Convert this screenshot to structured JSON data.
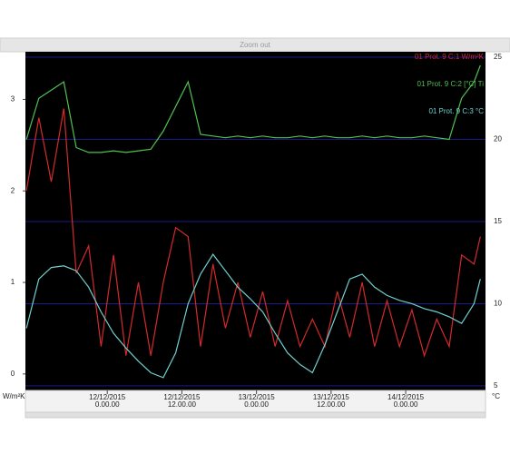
{
  "button": "Zoom out",
  "chart_data": {
    "type": "line",
    "ylabel": "W/m²K",
    "y2label": "°C",
    "x": [
      "2015-12-11T11:00",
      "2015-12-11T13:00",
      "2015-12-11T15:00",
      "2015-12-11T17:00",
      "2015-12-11T19:00",
      "2015-12-11T21:00",
      "2015-12-11T23:00",
      "2015-12-12T01:00",
      "2015-12-12T03:00",
      "2015-12-12T05:00",
      "2015-12-12T07:00",
      "2015-12-12T09:00",
      "2015-12-12T11:00",
      "2015-12-12T13:00",
      "2015-12-12T15:00",
      "2015-12-12T17:00",
      "2015-12-12T19:00",
      "2015-12-12T21:00",
      "2015-12-12T23:00",
      "2015-12-13T01:00",
      "2015-12-13T03:00",
      "2015-12-13T05:00",
      "2015-12-13T07:00",
      "2015-12-13T09:00",
      "2015-12-13T11:00",
      "2015-12-13T13:00",
      "2015-12-13T15:00",
      "2015-12-13T17:00",
      "2015-12-13T19:00",
      "2015-12-13T21:00",
      "2015-12-13T23:00",
      "2015-12-14T01:00",
      "2015-12-14T03:00",
      "2015-12-14T05:00",
      "2015-12-14T07:00",
      "2015-12-14T09:00",
      "2015-12-14T11:00",
      "2015-12-14T12:00"
    ],
    "xlim": [
      "2015-12-11T10:50",
      "2015-12-14T12:50"
    ],
    "xticks": [
      {
        "value": "2015-12-12T00:00",
        "label": [
          "12/12/2015",
          "0.00.00"
        ]
      },
      {
        "value": "2015-12-12T12:00",
        "label": [
          "12/12/2015",
          "12.00.00"
        ]
      },
      {
        "value": "2015-12-13T00:00",
        "label": [
          "13/12/2015",
          "0.00.00"
        ]
      },
      {
        "value": "2015-12-13T12:00",
        "label": [
          "13/12/2015",
          "12.00.00"
        ]
      },
      {
        "value": "2015-12-14T00:00",
        "label": [
          "14/12/2015",
          "0.00.00"
        ]
      }
    ],
    "ylim": [
      -0.18,
      3.52
    ],
    "yticks": [
      0,
      1,
      2,
      3
    ],
    "y2lim": [
      4.72,
      25.33
    ],
    "y2ticks": [
      5,
      10,
      15,
      20,
      25
    ],
    "y2grid": true,
    "grid_color": "#1a1a8c",
    "background": "#000000",
    "legend": "top-right",
    "series": [
      {
        "name": "01 Prot. 9 C:1 W/m²K",
        "color": "#d42a2a",
        "values": [
          2.0,
          2.8,
          2.1,
          2.9,
          1.1,
          1.4,
          0.3,
          1.3,
          0.2,
          1.0,
          0.2,
          1.0,
          1.6,
          1.5,
          0.3,
          1.2,
          0.5,
          1.0,
          0.4,
          0.9,
          0.3,
          0.8,
          0.3,
          0.6,
          0.3,
          0.9,
          0.4,
          1.0,
          0.3,
          0.8,
          0.3,
          0.7,
          0.2,
          0.6,
          0.3,
          1.3,
          1.2,
          1.5
        ]
      },
      {
        "name": "01 Prot. 9 C:2 [°C] Ti",
        "color": "#4fc24f",
        "axis": "y2",
        "values": [
          20.0,
          22.5,
          23.0,
          23.5,
          19.5,
          19.2,
          19.2,
          19.3,
          19.2,
          19.3,
          19.4,
          20.5,
          22.0,
          23.5,
          20.3,
          20.2,
          20.1,
          20.2,
          20.1,
          20.2,
          20.1,
          20.1,
          20.2,
          20.1,
          20.2,
          20.1,
          20.1,
          20.2,
          20.1,
          20.2,
          20.1,
          20.1,
          20.2,
          20.1,
          20.0,
          22.5,
          23.5,
          24.5
        ]
      },
      {
        "name": "01 Prot. 9 C:3 °C",
        "color": "#6fd0d0",
        "axis": "y2",
        "values": [
          8.5,
          11.5,
          12.2,
          12.3,
          12.0,
          11.0,
          9.5,
          8.2,
          7.3,
          6.5,
          5.8,
          5.5,
          7.0,
          10.0,
          11.8,
          13.0,
          12.0,
          11.0,
          10.3,
          9.5,
          8.2,
          7.0,
          6.3,
          5.8,
          7.5,
          9.5,
          11.5,
          11.8,
          11.0,
          10.5,
          10.2,
          10.0,
          9.7,
          9.5,
          9.2,
          8.8,
          10.0,
          11.5
        ]
      }
    ]
  }
}
